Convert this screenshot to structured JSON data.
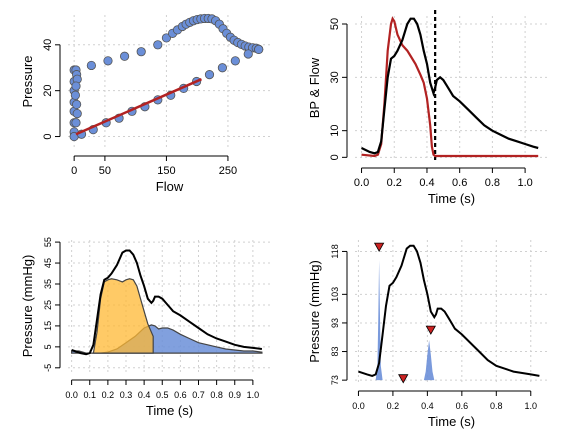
{
  "chart_data": [
    {
      "type": "scatter",
      "xlabel": "Flow",
      "ylabel": "Pressure",
      "x_ticks": [
        0,
        50,
        150,
        250
      ],
      "y_ticks": [
        0,
        20,
        40
      ],
      "xlim": [
        -10,
        320
      ],
      "ylim": [
        -5,
        53
      ],
      "grid": true,
      "series": [
        {
          "color": "#6B8FD8",
          "points": [
            [
              0,
              29
            ],
            [
              0,
              24
            ],
            [
              0,
              20
            ],
            [
              0,
              15
            ],
            [
              0,
              11
            ],
            [
              0,
              6
            ],
            [
              0,
              2
            ],
            [
              0,
              0
            ],
            [
              3,
              29
            ],
            [
              4,
              27
            ],
            [
              5,
              25
            ],
            [
              3,
              22
            ],
            [
              2,
              18
            ],
            [
              4,
              14
            ],
            [
              5,
              10
            ],
            [
              3,
              6
            ],
            [
              28,
              31
            ],
            [
              55,
              33
            ],
            [
              82,
              35
            ],
            [
              109,
              37
            ],
            [
              136,
              40
            ],
            [
              150,
              43
            ],
            [
              160,
              45
            ],
            [
              168,
              46.5
            ],
            [
              176,
              48
            ],
            [
              182,
              49
            ],
            [
              188,
              49.8
            ],
            [
              194,
              50.5
            ],
            [
              200,
              51
            ],
            [
              206,
              51.3
            ],
            [
              212,
              51.5
            ],
            [
              218,
              51.5
            ],
            [
              224,
              51.3
            ],
            [
              230,
              50.5
            ],
            [
              236,
              49
            ],
            [
              242,
              47
            ],
            [
              248,
              45
            ],
            [
              254,
              43.3
            ],
            [
              260,
              42
            ],
            [
              266,
              41
            ],
            [
              272,
              40.2
            ],
            [
              278,
              39.5
            ],
            [
              284,
              39
            ],
            [
              290,
              38.7
            ],
            [
              296,
              38.5
            ],
            [
              300,
              38
            ],
            [
              300,
              38
            ],
            [
              283,
              36
            ],
            [
              262,
              33
            ],
            [
              241,
              30
            ],
            [
              220,
              27
            ],
            [
              199,
              24
            ],
            [
              178,
              21
            ],
            [
              157,
              18
            ],
            [
              136,
              16
            ],
            [
              115,
              13
            ],
            [
              94,
              11
            ],
            [
              73,
              8
            ],
            [
              52,
              6
            ],
            [
              31,
              3
            ],
            [
              12,
              1
            ]
          ]
        },
        {
          "color": "#B22222",
          "line": [
            [
              3,
              1
            ],
            [
              207,
              25
            ]
          ]
        }
      ]
    },
    {
      "type": "line",
      "xlabel": "Time (s)",
      "ylabel": "BP & Flow",
      "x_ticks": [
        0.0,
        0.2,
        0.4,
        0.6,
        0.8,
        1.0
      ],
      "y_ticks": [
        0,
        10,
        30,
        50
      ],
      "xlim": [
        -0.04,
        1.14
      ],
      "ylim": [
        -1,
        53
      ],
      "grid": true,
      "vline_x": 0.45,
      "series": [
        {
          "color": "#000000",
          "x": [
            0.0,
            0.05,
            0.08,
            0.1,
            0.12,
            0.14,
            0.16,
            0.18,
            0.2,
            0.22,
            0.25,
            0.28,
            0.3,
            0.32,
            0.34,
            0.36,
            0.38,
            0.4,
            0.42,
            0.44,
            0.45,
            0.46,
            0.48,
            0.5,
            0.52,
            0.54,
            0.56,
            0.6,
            0.65,
            0.7,
            0.75,
            0.8,
            0.85,
            0.9,
            0.95,
            1.0,
            1.05,
            1.08
          ],
          "y": [
            3.5,
            2,
            1.5,
            2,
            6,
            18,
            30,
            37,
            38,
            40,
            44,
            50,
            52,
            52,
            50,
            46,
            40,
            35,
            28,
            24,
            26,
            29,
            30,
            29,
            27,
            25,
            23,
            21,
            18,
            15,
            12,
            10,
            8.5,
            7,
            6,
            5,
            4,
            3.5
          ]
        },
        {
          "color": "#B22222",
          "x": [
            0.0,
            0.08,
            0.1,
            0.12,
            0.14,
            0.16,
            0.18,
            0.19,
            0.2,
            0.22,
            0.25,
            0.28,
            0.3,
            0.33,
            0.36,
            0.38,
            0.4,
            0.42,
            0.43,
            0.44,
            0.45,
            0.5,
            0.6,
            0.8,
            1.0,
            1.08
          ],
          "y": [
            1,
            0.5,
            1,
            5,
            20,
            40,
            50,
            52,
            51,
            46,
            42,
            40,
            38,
            35,
            31,
            28,
            22,
            12,
            4,
            1,
            0.5,
            0.5,
            0.5,
            0.5,
            0.5,
            0.5
          ]
        }
      ]
    },
    {
      "type": "area",
      "xlabel": "Time (s)",
      "ylabel": "Pressure (mmHg)",
      "x_ticks": [
        0.0,
        0.1,
        0.2,
        0.3,
        0.4,
        0.5,
        0.6,
        0.7,
        0.8,
        0.9,
        1.0
      ],
      "y_ticks": [
        -5,
        5,
        15,
        25,
        35,
        45,
        55
      ],
      "xlim": [
        -0.02,
        1.1
      ],
      "ylim": [
        -7,
        56
      ],
      "grid": true,
      "series": [
        {
          "color": "#000000",
          "x": [
            0.0,
            0.05,
            0.08,
            0.1,
            0.12,
            0.14,
            0.16,
            0.18,
            0.2,
            0.22,
            0.25,
            0.28,
            0.3,
            0.32,
            0.34,
            0.36,
            0.38,
            0.4,
            0.42,
            0.44,
            0.45,
            0.46,
            0.48,
            0.5,
            0.52,
            0.54,
            0.56,
            0.6,
            0.65,
            0.7,
            0.75,
            0.8,
            0.85,
            0.9,
            0.95,
            1.0,
            1.05
          ],
          "y": [
            3.5,
            2,
            1.5,
            2,
            6,
            18,
            30,
            37,
            38,
            40,
            44,
            50,
            51,
            51,
            49,
            45,
            39,
            34,
            28,
            26,
            27,
            29,
            29,
            28,
            26,
            24,
            22,
            20,
            17,
            14,
            11,
            9,
            7.5,
            6,
            5,
            4.5,
            4
          ]
        },
        {
          "color": "#FFB833",
          "x": [
            0.12,
            0.14,
            0.16,
            0.18,
            0.2,
            0.22,
            0.25,
            0.28,
            0.3,
            0.32,
            0.34,
            0.36,
            0.38,
            0.4,
            0.42,
            0.44,
            0.45
          ],
          "y": [
            2,
            12,
            28,
            36,
            37,
            37.5,
            37,
            36,
            37,
            37.5,
            37,
            34,
            28,
            22,
            16,
            12,
            10
          ]
        },
        {
          "color": "#6B8FD8",
          "x": [
            0.0,
            0.04,
            0.08,
            0.12,
            0.16,
            0.2,
            0.25,
            0.3,
            0.35,
            0.4,
            0.44,
            0.46,
            0.48,
            0.5,
            0.53,
            0.56,
            0.6,
            0.65,
            0.7,
            0.75,
            0.8,
            0.85,
            0.9,
            0.95,
            1.0,
            1.05
          ],
          "y": [
            3,
            3,
            2,
            2,
            2,
            2.5,
            4,
            7,
            10,
            14,
            15.5,
            15,
            13.5,
            14,
            14,
            13,
            11,
            9,
            7,
            6,
            5,
            4,
            3.5,
            3,
            3,
            2.5
          ]
        }
      ]
    },
    {
      "type": "line",
      "xlabel": "Time (s)",
      "ylabel": "Pressure (mmHg)",
      "x_ticks": [
        0.0,
        0.2,
        0.4,
        0.6,
        0.8,
        1.0
      ],
      "y_ticks": [
        73,
        83,
        93,
        103,
        118
      ],
      "xlim": [
        -0.02,
        1.1
      ],
      "ylim": [
        72,
        122
      ],
      "grid": true,
      "series": [
        {
          "color": "#000000",
          "x": [
            0.0,
            0.05,
            0.08,
            0.1,
            0.12,
            0.14,
            0.16,
            0.18,
            0.2,
            0.22,
            0.25,
            0.28,
            0.3,
            0.32,
            0.34,
            0.36,
            0.38,
            0.4,
            0.42,
            0.44,
            0.45,
            0.46,
            0.48,
            0.5,
            0.52,
            0.54,
            0.56,
            0.6,
            0.65,
            0.7,
            0.75,
            0.8,
            0.85,
            0.9,
            0.95,
            1.0,
            1.05
          ],
          "y": [
            76,
            75,
            74.5,
            75,
            79,
            89,
            99,
            106,
            107,
            109,
            113,
            119,
            120,
            120,
            118,
            114,
            108,
            103,
            97,
            95,
            96,
            98,
            98,
            97,
            95,
            93,
            91,
            89,
            86,
            83,
            80,
            78,
            77,
            76,
            75.5,
            75,
            74.5
          ]
        },
        {
          "color": "#6B8FD8",
          "fill": true,
          "x": [
            0.1,
            0.11,
            0.115,
            0.12,
            0.125,
            0.13,
            0.14,
            0.15,
            0.2,
            0.3,
            0.38,
            0.39,
            0.4,
            0.41,
            0.42,
            0.43,
            0.44
          ],
          "y": [
            73,
            78,
            95,
            115,
            95,
            78,
            73,
            73,
            73,
            73,
            73,
            76,
            82,
            87,
            82,
            76,
            73
          ]
        }
      ],
      "markers": [
        {
          "x": 0.12,
          "y": 119.5,
          "color": "#CC2222"
        },
        {
          "x": 0.26,
          "y": 73.5,
          "color": "#CC2222"
        },
        {
          "x": 0.42,
          "y": 90.5,
          "color": "#CC2222"
        }
      ]
    }
  ]
}
